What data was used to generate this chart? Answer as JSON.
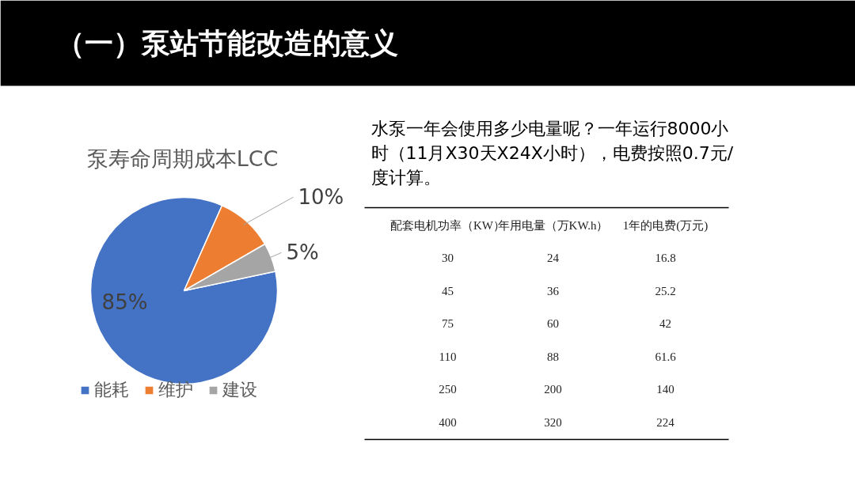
{
  "chart_data": [
    {
      "type": "other",
      "title": "（一）泵站节能改造的意义"
    },
    {
      "type": "pie",
      "title": "泵寿命周期成本LCC",
      "categories": [
        "能耗",
        "维护",
        "建设"
      ],
      "values": [
        85,
        10,
        5
      ],
      "colors": [
        "#4472c4",
        "#ed7d31",
        "#a5a5a5"
      ],
      "value_labels": [
        "85%",
        "10%",
        "5%"
      ],
      "legend": "bottom"
    },
    {
      "type": "other",
      "annotations": [
        "水泵一年会使用多少电量呢？一年运行8000小时（11月X30天X24X小时），电费按照0.7元/度计算。",
        "配套电机功率（KW）",
        "年用电量（万KW.h）",
        "1年的电费(万元)",
        "30",
        "24",
        "16.8",
        "45",
        "36",
        "25.2",
        "75",
        "60",
        "42",
        "110",
        "88",
        "61.6",
        "250",
        "200",
        "140",
        "400",
        "320",
        "224"
      ]
    }
  ]
}
